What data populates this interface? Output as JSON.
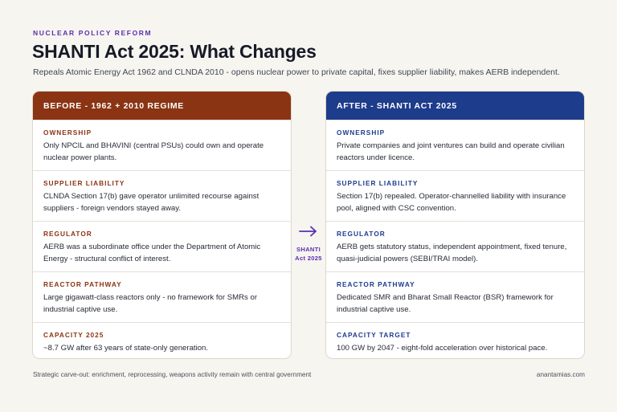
{
  "eyebrow": "NUCLEAR POLICY REFORM",
  "title": "SHANTI Act 2025: What Changes",
  "subtitle": "Repeals Atomic Energy Act 1962 and CLNDA 2010 - opens nuclear power to private capital, fixes supplier liability, makes AERB independent.",
  "colors": {
    "accent": "#5b2fb0",
    "before": "#8a3413",
    "after": "#1e3c8c",
    "background": "#f7f5f0"
  },
  "before": {
    "header": "BEFORE - 1962 + 2010 REGIME",
    "rows": [
      {
        "label": "OWNERSHIP",
        "text": "Only NPCIL and BHAVINI (central PSUs) could own and operate nuclear power plants."
      },
      {
        "label": "SUPPLIER LIABILITY",
        "text": "CLNDA Section 17(b) gave operator unlimited recourse against suppliers - foreign vendors stayed away."
      },
      {
        "label": "REGULATOR",
        "text": "AERB was a subordinate office under the Department of Atomic Energy - structural conflict of interest."
      },
      {
        "label": "REACTOR PATHWAY",
        "text": "Large gigawatt-class reactors only - no framework for SMRs or industrial captive use."
      },
      {
        "label": "CAPACITY 2025",
        "text": "~8.7 GW after 63 years of state-only generation."
      }
    ]
  },
  "after": {
    "header": "AFTER - SHANTI ACT 2025",
    "rows": [
      {
        "label": "OWNERSHIP",
        "text": "Private companies and joint ventures can build and operate civilian reactors under licence."
      },
      {
        "label": "SUPPLIER LIABILITY",
        "text": "Section 17(b) repealed. Operator-channelled liability with insurance pool, aligned with CSC convention."
      },
      {
        "label": "REGULATOR",
        "text": "AERB gets statutory status, independent appointment, fixed tenure, quasi-judicial powers (SEBI/TRAI model)."
      },
      {
        "label": "REACTOR PATHWAY",
        "text": "Dedicated SMR and Bharat Small Reactor (BSR) framework for industrial captive use."
      },
      {
        "label": "CAPACITY TARGET",
        "text": "100 GW by 2047 - eight-fold acceleration over historical pace."
      }
    ]
  },
  "connector": {
    "icon": "arrow-right-icon",
    "line1": "SHANTI",
    "line2": "Act 2025"
  },
  "footnote": "Strategic carve-out: enrichment, reprocessing, weapons activity remain with central government",
  "credit": "anantamias.com"
}
